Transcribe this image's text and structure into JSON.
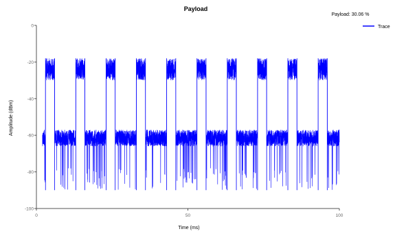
{
  "chart_data": {
    "type": "line",
    "title": "Payload",
    "annotation": "Payload: 30.06 %",
    "xlabel": "Time (ms)",
    "ylabel": "Amplitude (dBm)",
    "xlim": [
      0,
      100
    ],
    "ylim": [
      -100,
      0
    ],
    "xticks": [
      0,
      50,
      100
    ],
    "xtick_labels": [
      "0",
      "50",
      "100"
    ],
    "yticks": [
      0,
      -20,
      -40,
      -60,
      -80,
      -100
    ],
    "ytick_labels": [
      "0",
      "-20",
      "-40",
      "-60",
      "-80",
      "-100"
    ],
    "grid": false,
    "legend_position": "top-right",
    "series": [
      {
        "name": "Trace",
        "color": "#0000ff",
        "burst_period_ms": 10,
        "burst_starts_ms": [
          -7,
          3,
          13,
          23,
          33,
          43,
          53,
          63,
          73,
          83,
          93
        ],
        "high_burst_duration_ms": 3,
        "high_level_dbm": [
          -18,
          -30
        ],
        "mid_level_dbm": [
          -57,
          -66
        ],
        "low_floor_dbm": [
          -78,
          -90
        ],
        "trace_end_ms": 100
      }
    ]
  }
}
